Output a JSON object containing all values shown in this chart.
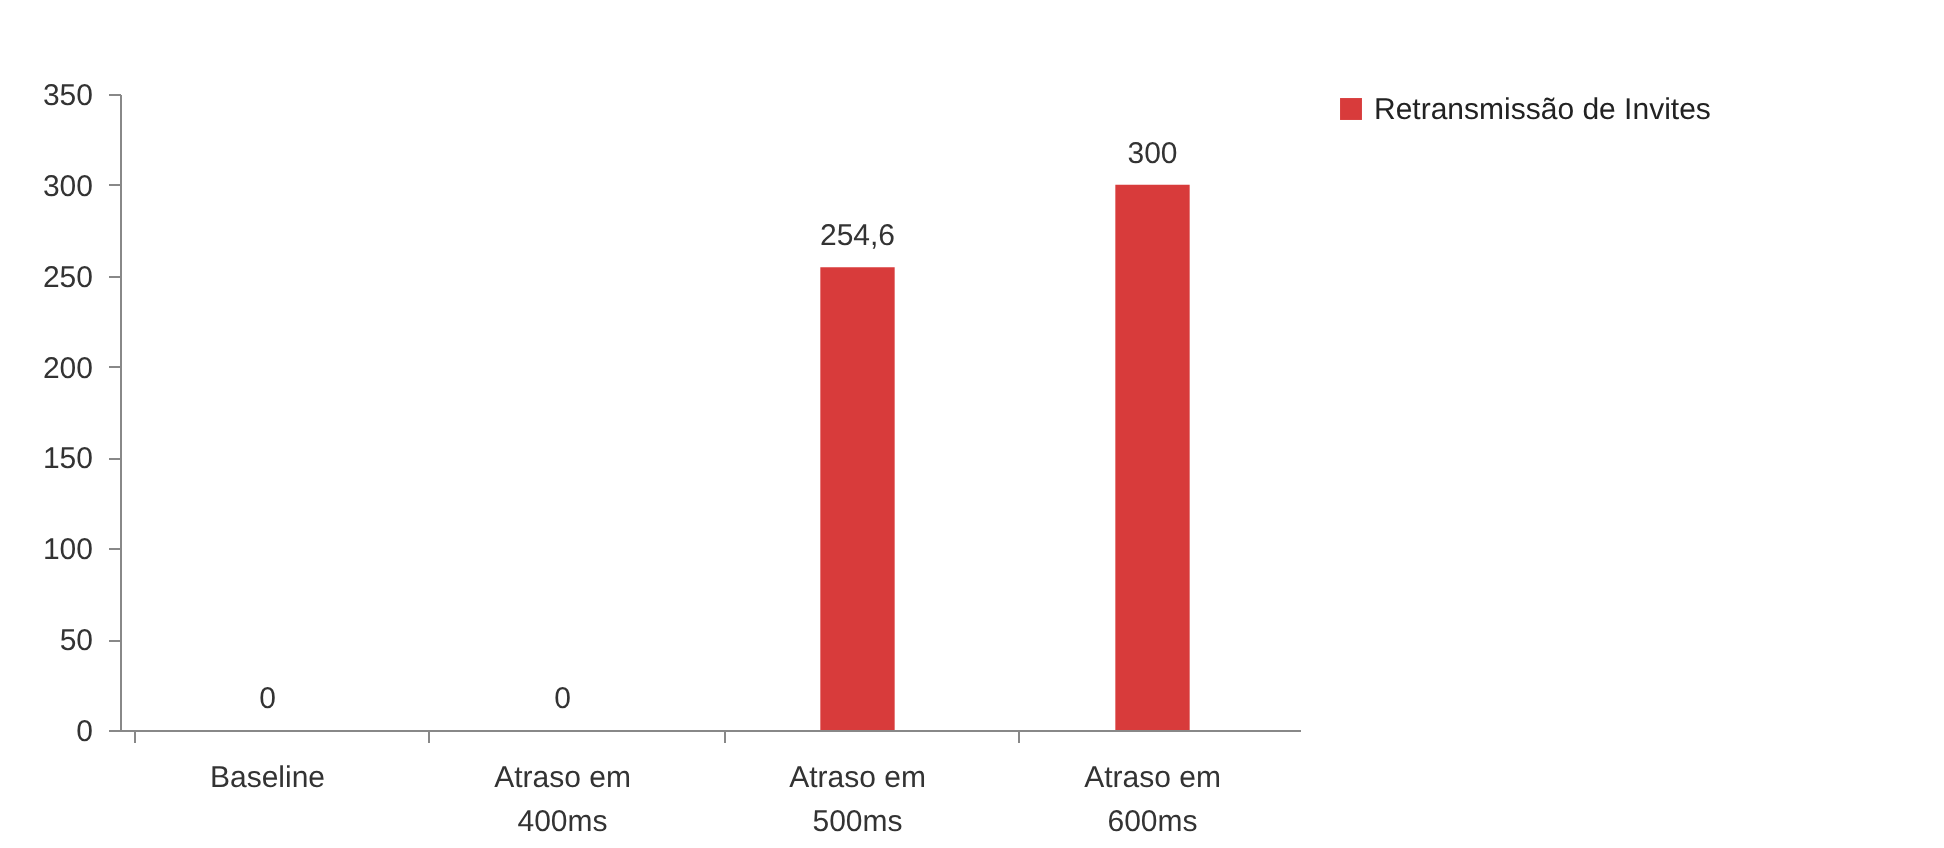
{
  "chart_data": {
    "type": "bar",
    "categories": [
      "Baseline",
      "Atraso em 400ms",
      "Atraso em 500ms",
      "Atraso em 600ms"
    ],
    "series": [
      {
        "name": "Retransmissão de Invites",
        "color": "#d83b3b",
        "values": [
          0,
          0,
          254.6,
          300
        ],
        "value_labels": [
          "0",
          "0",
          "254,6",
          "300"
        ]
      }
    ],
    "ylim": [
      0,
      350
    ],
    "yticks": [
      0,
      50,
      100,
      150,
      200,
      250,
      300,
      350
    ],
    "grid": false,
    "legend": "right"
  }
}
